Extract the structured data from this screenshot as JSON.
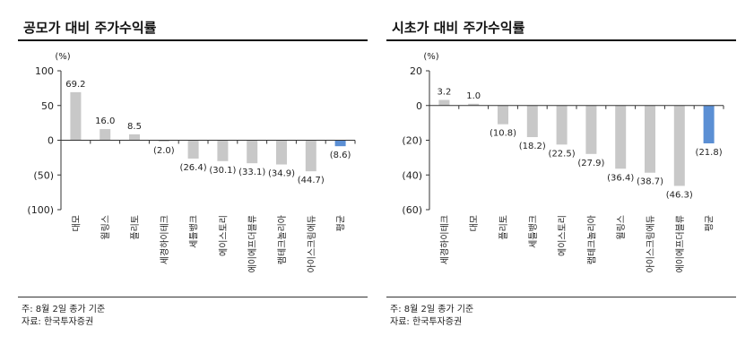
{
  "charts": [
    {
      "title": "공모가 대비 주가수익률",
      "note_lines": [
        "주: 8월 2일 종가 기준",
        "자료: 한국투자증권"
      ],
      "chart_data": {
        "type": "bar",
        "title": "공모가 대비 주가수익률",
        "unit_label": "(%)",
        "categories": [
          "대모",
          "윌링스",
          "플리토",
          "세경하이테크",
          "세틀뱅크",
          "에이스토리",
          "에이에프더블류",
          "램테크놀리아",
          "아이스크림에듀",
          "평균"
        ],
        "values": [
          69.2,
          16.0,
          8.5,
          -2.0,
          -26.4,
          -30.1,
          -33.1,
          -34.9,
          -44.7,
          -8.6
        ],
        "value_labels": [
          "69.2",
          "16.0",
          "8.5",
          "(2.0)",
          "(26.4)",
          "(30.1)",
          "(33.1)",
          "(34.9)",
          "(44.7)",
          "(8.6)"
        ],
        "yticks": [
          100,
          50,
          0,
          -50,
          -100
        ],
        "ytick_labels": [
          "100",
          "50",
          "0",
          "(50)",
          "(100)"
        ],
        "ylim": [
          -100,
          100
        ],
        "highlight_index": 9,
        "colors": {
          "bar": "#c8c8c8",
          "highlight": "#5b8fd4"
        }
      }
    },
    {
      "title": "시초가 대비 주가수익률",
      "note_lines": [
        "주: 8월 2일 종가 기준",
        "자료: 한국투자증권"
      ],
      "chart_data": {
        "type": "bar",
        "title": "시초가 대비 주가수익률",
        "unit_label": "(%)",
        "categories": [
          "세경하이테크",
          "대모",
          "플리토",
          "세틀뱅크",
          "에이스토리",
          "램테크놀리아",
          "윌링스",
          "아이스크림에듀",
          "에이에프더블류",
          "평균"
        ],
        "values": [
          3.2,
          1.0,
          -10.8,
          -18.2,
          -22.5,
          -27.9,
          -36.4,
          -38.7,
          -46.3,
          -21.8
        ],
        "value_labels": [
          "3.2",
          "1.0",
          "(10.8)",
          "(18.2)",
          "(22.5)",
          "(27.9)",
          "(36.4)",
          "(38.7)",
          "(46.3)",
          "(21.8)"
        ],
        "yticks": [
          20,
          0,
          -20,
          -40,
          -60
        ],
        "ytick_labels": [
          "20",
          "0",
          "(20)",
          "(40)",
          "(60)"
        ],
        "ylim": [
          -60,
          20
        ],
        "highlight_index": 9,
        "colors": {
          "bar": "#c8c8c8",
          "highlight": "#5b8fd4"
        }
      }
    }
  ]
}
